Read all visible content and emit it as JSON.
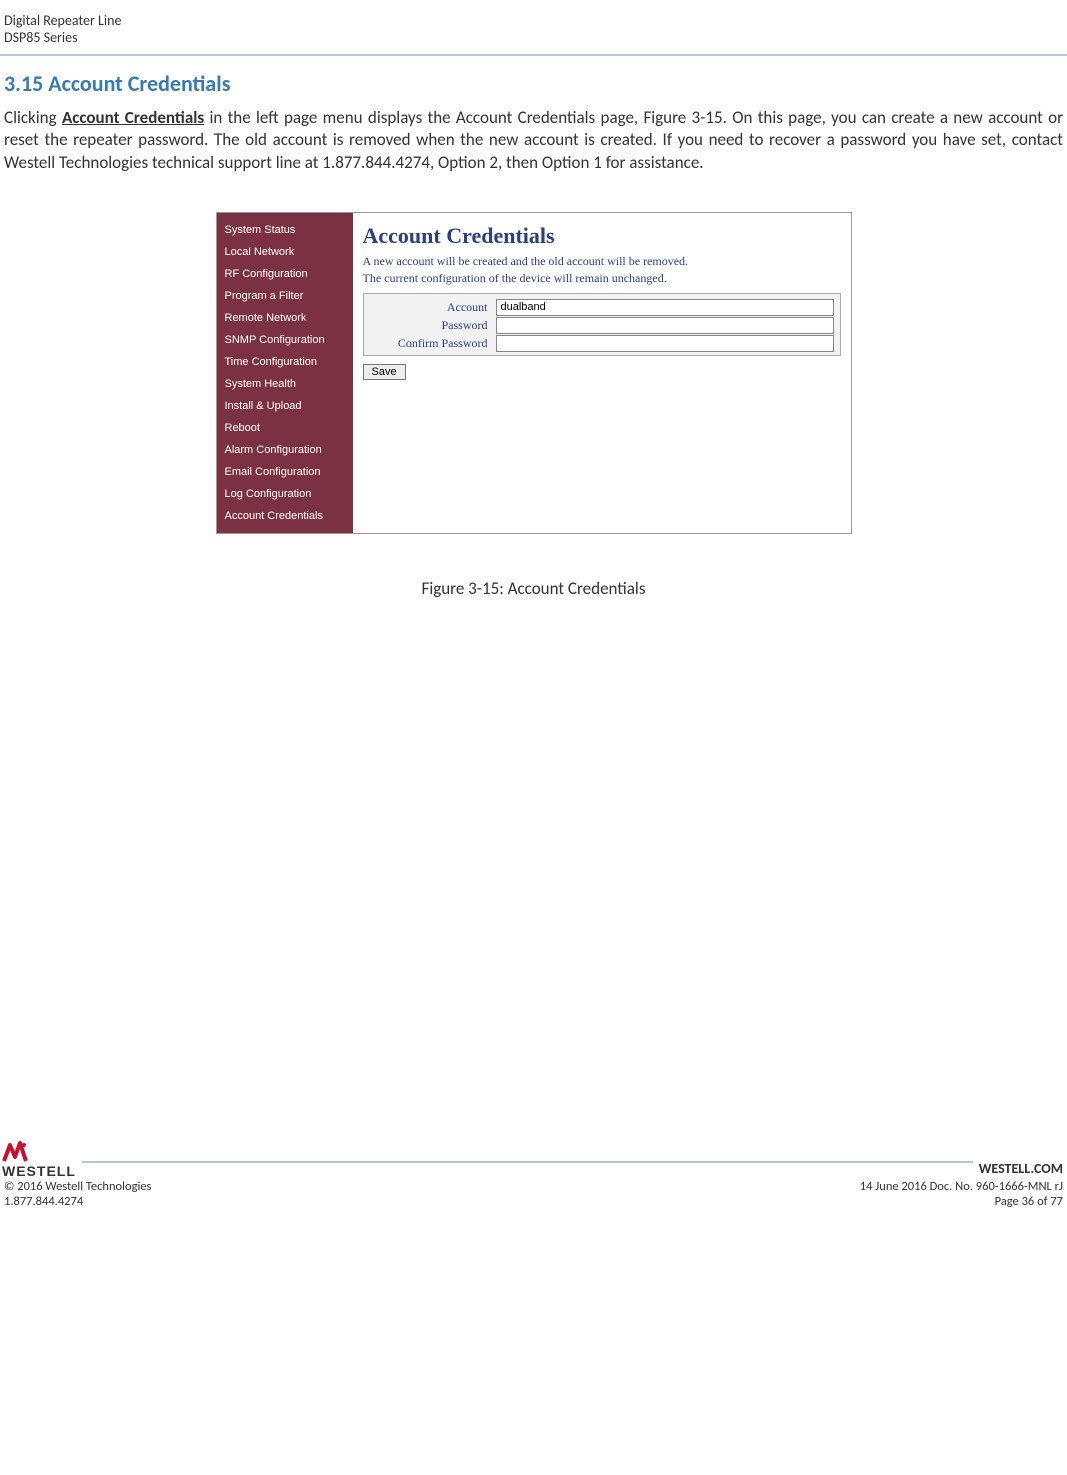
{
  "header": {
    "line1": "Digital Repeater Line",
    "line2": "DSP85 Series"
  },
  "section": {
    "number_title": "3.15 Account Credentials",
    "body_before_bold": "Clicking ",
    "body_bold": "Account Credentials",
    "body_after_bold": " in the left page menu displays the Account Credentials page, Figure 3-15. On this page, you can create a new account or reset the repeater password.  The old account is removed when the new account is created.  If you need to recover a password you have set, contact Westell Technologies technical support line at 1.877.844.4274, Option 2, then Option 1 for assistance."
  },
  "sidebar": {
    "items": [
      "System Status",
      "Local Network",
      "RF Configuration",
      "Program a Filter",
      "Remote Network",
      "SNMP Configuration",
      "Time Configuration",
      "System Health",
      "Install & Upload",
      "Reboot",
      "Alarm Configuration",
      "Email Configuration",
      "Log Configuration",
      "Account Credentials"
    ],
    "background_color": "#7b3142",
    "text_color": "#ffffff"
  },
  "panel": {
    "title": "Account Credentials",
    "info1": "A new account will be created and the old account will be removed.",
    "info2": "The current configuration of the device will remain unchanged.",
    "labels": {
      "account": "Account",
      "password": "Password",
      "confirm": "Confirm Password"
    },
    "account_value": "dualband",
    "save_label": "Save",
    "title_color": "#2e3e84",
    "form_bg": "#f2f2f2"
  },
  "caption": "Figure 3-15: Account Credentials",
  "footer": {
    "logo_word": "WESTELL",
    "westell_com": "WESTELL.COM",
    "copyright": "© 2016 Westell Technologies",
    "doc": "14 June 2016 Doc. No. 960-1666-MNL rJ",
    "phone": "1.877.844.4274",
    "page": "Page 36 of 77",
    "logo_red": "#c8102e"
  }
}
